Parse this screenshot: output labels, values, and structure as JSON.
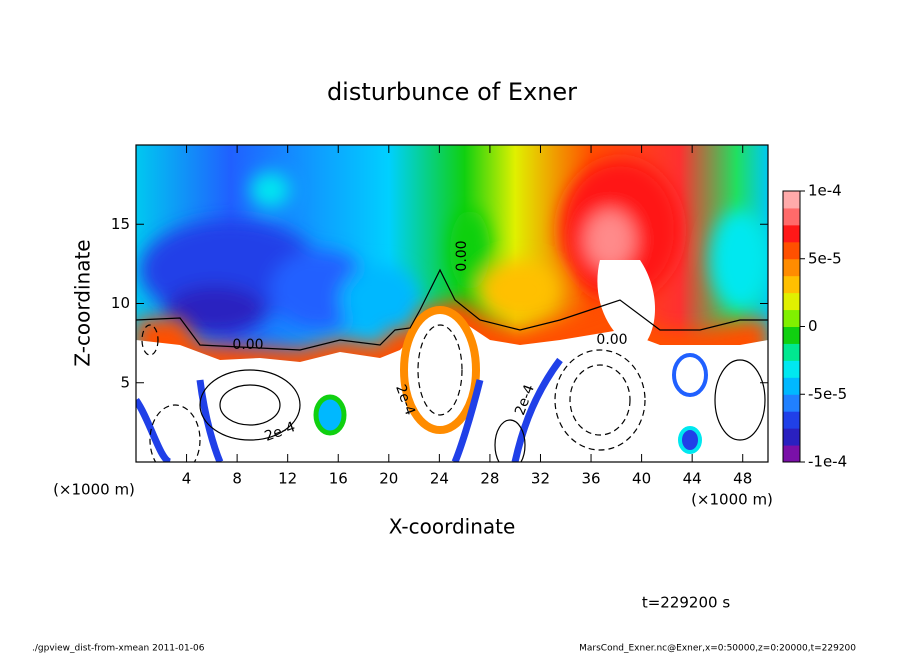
{
  "chart_data": {
    "type": "contour",
    "title": "disturbunce of Exner",
    "x_label": "X-coordinate",
    "y_label": "Z-coordinate",
    "x_unit_label": "(×1000 m)",
    "xlim": [
      0,
      50
    ],
    "ylim": [
      0,
      20
    ],
    "xticks": [
      4,
      8,
      12,
      16,
      20,
      24,
      28,
      32,
      36,
      40,
      44,
      48
    ],
    "yticks": [
      5,
      10,
      15
    ],
    "colorbar": {
      "lim": [
        -0.0001,
        0.0001
      ],
      "ticks": [
        {
          "value": -0.0001,
          "label": "-1e-4"
        },
        {
          "value": -5e-05,
          "label": "-5e-5"
        },
        0,
        {
          "value": 5e-05,
          "label": "5e-5"
        },
        {
          "value": 0.0001,
          "label": "1e-4"
        }
      ],
      "colors": [
        "#7a10a8",
        "#2a20c0",
        "#2040e8",
        "#2080ff",
        "#00b8ff",
        "#00e8f0",
        "#00e890",
        "#10d010",
        "#80f000",
        "#e0f000",
        "#ffc000",
        "#ff8c00",
        "#ff5000",
        "#ff1818",
        "#ff6a6a",
        "#ffaaaa"
      ]
    },
    "contour_labels": [
      "0.00",
      "0.00",
      "0.00",
      "2e-4",
      "2e-4",
      "2e-4"
    ],
    "annotation": "t=229200 s",
    "footer_left": "./gpview_dist-from-xmean  2011-01-06",
    "footer_right": "MarsCond_Exner.nc@Exner,x=0:50000,z=0:20000,t=229200"
  }
}
